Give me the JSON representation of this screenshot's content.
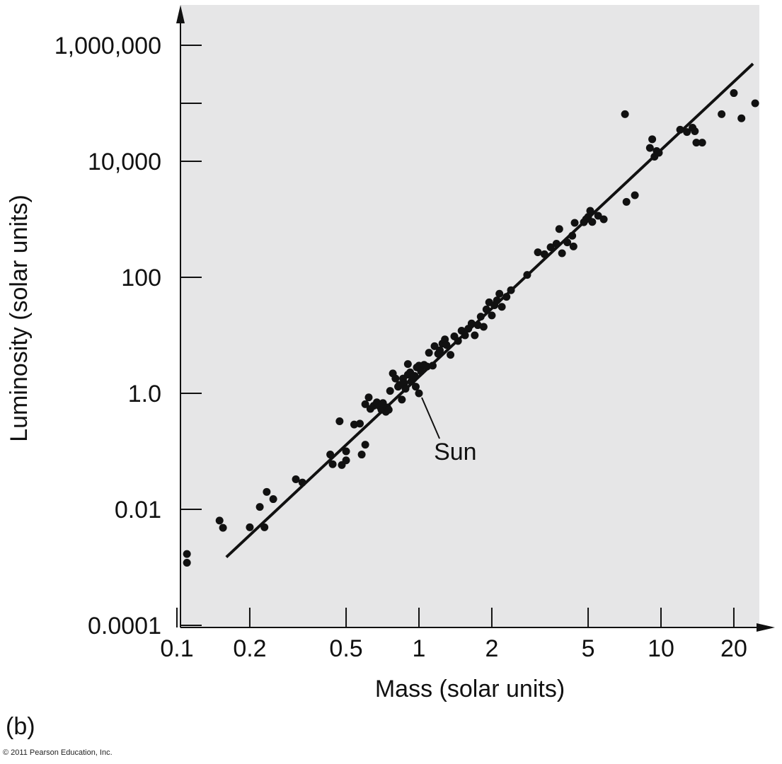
{
  "colors": {
    "plot_bg": "#e6e6e7",
    "ink": "#111111",
    "page_bg": "#ffffff"
  },
  "panel_label": "(b)",
  "copyright": "© 2011 Pearson Education, Inc.",
  "chart_data": {
    "type": "scatter",
    "title": "",
    "xlabel": "Mass (solar units)",
    "ylabel": "Luminosity (solar units)",
    "xscale": "log",
    "yscale": "log",
    "xlim": [
      0.1,
      26
    ],
    "ylim": [
      0.0001,
      2500000
    ],
    "grid": false,
    "x_ticks": [
      {
        "value": 0.1,
        "label": "0.1"
      },
      {
        "value": 0.2,
        "label": "0.2"
      },
      {
        "value": 0.5,
        "label": "0.5"
      },
      {
        "value": 1,
        "label": "1"
      },
      {
        "value": 2,
        "label": "2"
      },
      {
        "value": 5,
        "label": "5"
      },
      {
        "value": 10,
        "label": "10"
      },
      {
        "value": 20,
        "label": "20"
      }
    ],
    "y_ticks": [
      {
        "value": 0.0001,
        "label": "0.0001"
      },
      {
        "value": 0.01,
        "label": "0.01"
      },
      {
        "value": 1,
        "label": "1.0"
      },
      {
        "value": 100,
        "label": "100"
      },
      {
        "value": 10000,
        "label": "10,000"
      },
      {
        "value": 1000000,
        "label": "1,000,000"
      }
    ],
    "y_minor_ticks": [
      100000
    ],
    "fit_line": {
      "x": [
        0.16,
        24
      ],
      "y": [
        0.0015,
        480000
      ]
    },
    "annotations": [
      {
        "text": "Sun",
        "x": 1.0,
        "y": 1.0,
        "label_x": 1.2,
        "label_y": 0.1
      }
    ],
    "points": [
      [
        0.11,
        0.0017
      ],
      [
        0.11,
        0.0012
      ],
      [
        0.15,
        0.0064
      ],
      [
        0.155,
        0.0048
      ],
      [
        0.2,
        0.0049
      ],
      [
        0.22,
        0.011
      ],
      [
        0.23,
        0.0049
      ],
      [
        0.235,
        0.02
      ],
      [
        0.25,
        0.015
      ],
      [
        0.31,
        0.033
      ],
      [
        0.33,
        0.029
      ],
      [
        0.43,
        0.088
      ],
      [
        0.44,
        0.06
      ],
      [
        0.47,
        0.33
      ],
      [
        0.48,
        0.058
      ],
      [
        0.5,
        0.1
      ],
      [
        0.5,
        0.07
      ],
      [
        0.54,
        0.29
      ],
      [
        0.57,
        0.3
      ],
      [
        0.58,
        0.088
      ],
      [
        0.6,
        0.13
      ],
      [
        0.6,
        0.65
      ],
      [
        0.62,
        0.85
      ],
      [
        0.63,
        0.54
      ],
      [
        0.65,
        0.61
      ],
      [
        0.67,
        0.7
      ],
      [
        0.69,
        0.59
      ],
      [
        0.7,
        0.52
      ],
      [
        0.71,
        0.68
      ],
      [
        0.73,
        0.48
      ],
      [
        0.74,
        0.57
      ],
      [
        0.75,
        0.52
      ],
      [
        0.76,
        1.1
      ],
      [
        0.78,
        2.2
      ],
      [
        0.8,
        1.8
      ],
      [
        0.82,
        1.3
      ],
      [
        0.83,
        1.4
      ],
      [
        0.85,
        0.78
      ],
      [
        0.86,
        1.8
      ],
      [
        0.87,
        1.5
      ],
      [
        0.88,
        1.2
      ],
      [
        0.9,
        2.1
      ],
      [
        0.9,
        3.2
      ],
      [
        0.92,
        2.3
      ],
      [
        0.93,
        1.6
      ],
      [
        0.95,
        1.8
      ],
      [
        0.96,
        2.0
      ],
      [
        0.97,
        1.3
      ],
      [
        0.98,
        2.8
      ],
      [
        1.0,
        3.0
      ],
      [
        1.0,
        1.0
      ],
      [
        1.02,
        2.4
      ],
      [
        1.05,
        3.1
      ],
      [
        1.08,
        2.9
      ],
      [
        1.1,
        5.0
      ],
      [
        1.14,
        3.0
      ],
      [
        1.16,
        6.5
      ],
      [
        1.2,
        4.8
      ],
      [
        1.22,
        5.5
      ],
      [
        1.25,
        7.2
      ],
      [
        1.28,
        8.5
      ],
      [
        1.3,
        6.8
      ],
      [
        1.35,
        4.6
      ],
      [
        1.4,
        9.6
      ],
      [
        1.45,
        8.0
      ],
      [
        1.5,
        12
      ],
      [
        1.55,
        10
      ],
      [
        1.6,
        13
      ],
      [
        1.65,
        16
      ],
      [
        1.7,
        10
      ],
      [
        1.75,
        15
      ],
      [
        1.8,
        21
      ],
      [
        1.85,
        14
      ],
      [
        1.9,
        28
      ],
      [
        1.95,
        37
      ],
      [
        2.0,
        22
      ],
      [
        2.05,
        33
      ],
      [
        2.1,
        40
      ],
      [
        2.15,
        52
      ],
      [
        2.2,
        31
      ],
      [
        2.3,
        46
      ],
      [
        2.4,
        60
      ],
      [
        2.8,
        110
      ],
      [
        3.1,
        270
      ],
      [
        3.3,
        250
      ],
      [
        3.5,
        330
      ],
      [
        3.7,
        380
      ],
      [
        3.8,
        680
      ],
      [
        3.9,
        260
      ],
      [
        4.1,
        400
      ],
      [
        4.3,
        520
      ],
      [
        4.35,
        340
      ],
      [
        4.4,
        870
      ],
      [
        4.8,
        890
      ],
      [
        4.9,
        1000
      ],
      [
        5.0,
        1100
      ],
      [
        5.1,
        1400
      ],
      [
        5.2,
        900
      ],
      [
        5.5,
        1150
      ],
      [
        5.8,
        1000
      ],
      [
        7.1,
        65000
      ],
      [
        7.2,
        2000
      ],
      [
        7.8,
        2600
      ],
      [
        9.0,
        17000
      ],
      [
        9.2,
        24000
      ],
      [
        9.4,
        12000
      ],
      [
        9.6,
        15000
      ],
      [
        9.8,
        14000
      ],
      [
        12,
        35000
      ],
      [
        12.8,
        32000
      ],
      [
        13.5,
        38000
      ],
      [
        13.8,
        33000
      ],
      [
        14,
        21000
      ],
      [
        14.8,
        21000
      ],
      [
        17.8,
        65000
      ],
      [
        20,
        150000
      ],
      [
        21.5,
        55000
      ],
      [
        24.5,
        100000
      ]
    ]
  }
}
